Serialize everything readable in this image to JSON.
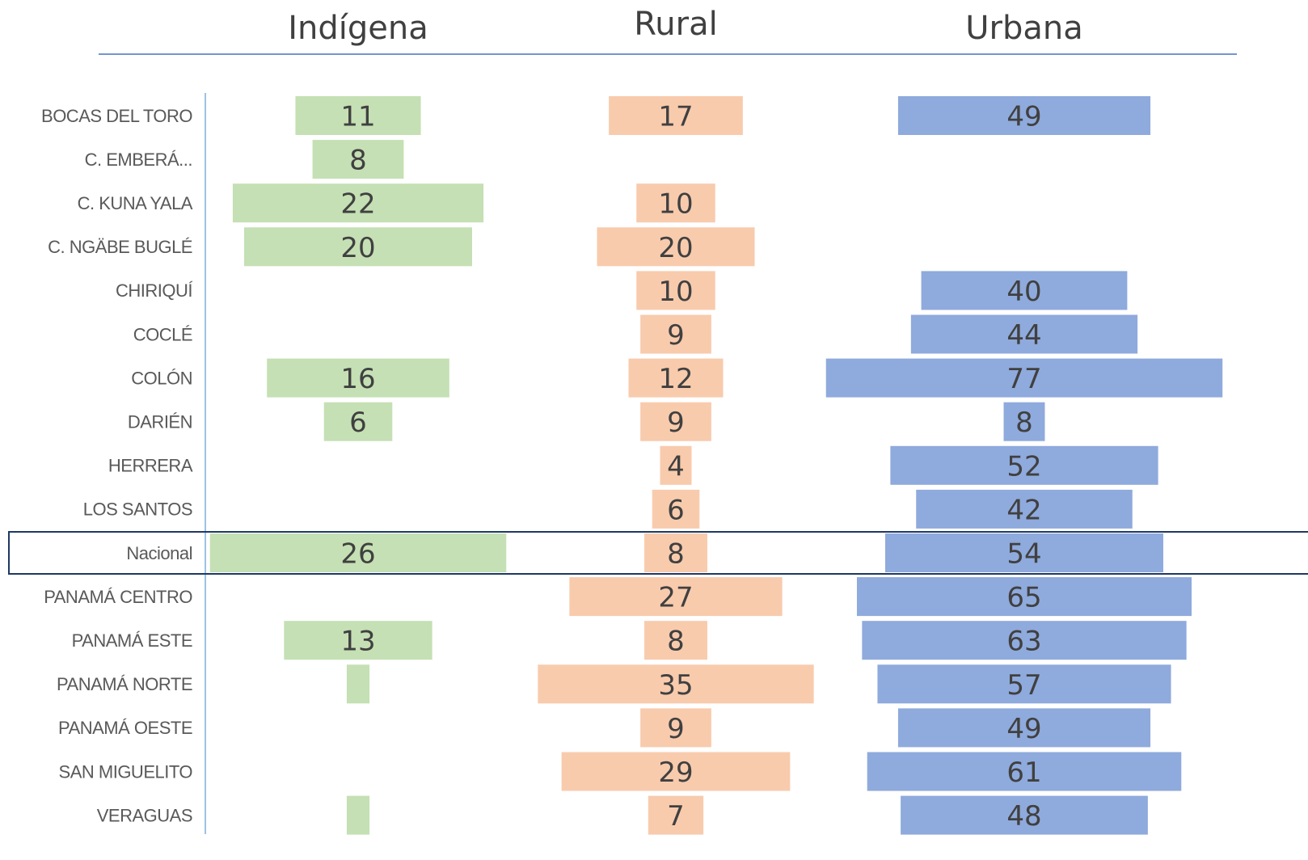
{
  "chart_data": {
    "type": "bar",
    "categories": [
      "BOCAS DEL TORO",
      "C. EMBERÁ...",
      "C. KUNA YALA",
      "C. NGÄBE BUGLÉ",
      "CHIRIQUÍ",
      "COCLÉ",
      "COLÓN",
      "DARIÉN",
      "HERRERA",
      "LOS SANTOS",
      "Nacional",
      "PANAMÁ CENTRO",
      "PANAMÁ ESTE",
      "PANAMÁ NORTE",
      "PANAMÁ OESTE",
      "SAN MIGUELITO",
      "VERAGUAS"
    ],
    "highlight_index": 10,
    "series": [
      {
        "name": "Indígena",
        "color": "#c5e0b4",
        "values": [
          11,
          8,
          22,
          20,
          null,
          null,
          16,
          6,
          null,
          null,
          26,
          null,
          13,
          2,
          null,
          null,
          2
        ],
        "value_labels": [
          "11",
          "8",
          "22",
          "20",
          null,
          null,
          "16",
          "6",
          null,
          null,
          "26",
          null,
          "13",
          null,
          null,
          null,
          null
        ]
      },
      {
        "name": "Rural",
        "color": "#f8cbad",
        "values": [
          17,
          null,
          10,
          20,
          10,
          9,
          12,
          9,
          4,
          6,
          8,
          27,
          8,
          35,
          9,
          29,
          7
        ]
      },
      {
        "name": "Urbana",
        "color": "#8faadc",
        "values": [
          49,
          null,
          null,
          null,
          40,
          44,
          77,
          8,
          52,
          42,
          54,
          65,
          63,
          57,
          49,
          61,
          48
        ]
      }
    ]
  }
}
